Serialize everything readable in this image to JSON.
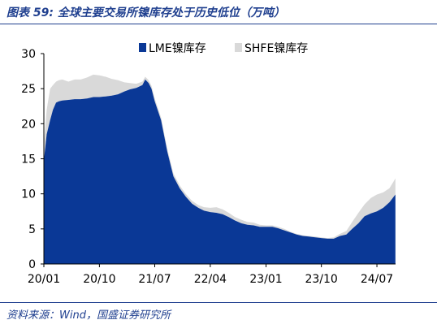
{
  "header": {
    "title": "图表 59:  全球主要交易所镍库存处于历史低位（万吨）"
  },
  "footer": {
    "source": "资料来源：Wind，国盛证券研究所"
  },
  "colors": {
    "lme": "#0a3896",
    "shfe": "#d9d9d9",
    "accent": "#1f3f8f"
  },
  "chart_data": {
    "type": "area",
    "stacked": true,
    "title": "",
    "xlabel": "",
    "ylabel": "",
    "ylim": [
      0,
      30
    ],
    "yticks": [
      0,
      5,
      10,
      15,
      20,
      25,
      30
    ],
    "xlim": [
      "2020-01",
      "2024-10"
    ],
    "xticks": [
      "20/01",
      "20/10",
      "21/07",
      "22/04",
      "23/01",
      "23/10",
      "24/07"
    ],
    "grid": false,
    "legend": {
      "position": "top-center",
      "entries": [
        "LME镍库存",
        "SHFE镍库存"
      ]
    },
    "x": [
      "2020-01-02",
      "2020-01-15",
      "2020-02-01",
      "2020-02-15",
      "2020-03-01",
      "2020-03-15",
      "2020-04-01",
      "2020-05-01",
      "2020-06-01",
      "2020-07-01",
      "2020-08-01",
      "2020-09-01",
      "2020-10-01",
      "2020-11-01",
      "2020-12-01",
      "2021-01-01",
      "2021-02-01",
      "2021-03-01",
      "2021-04-01",
      "2021-05-01",
      "2021-05-15",
      "2021-06-01",
      "2021-06-15",
      "2021-07-01",
      "2021-08-01",
      "2021-09-01",
      "2021-10-01",
      "2021-11-01",
      "2021-12-01",
      "2022-01-01",
      "2022-02-01",
      "2022-03-01",
      "2022-04-01",
      "2022-05-01",
      "2022-06-01",
      "2022-07-01",
      "2022-08-01",
      "2022-09-01",
      "2022-10-01",
      "2022-11-01",
      "2022-12-01",
      "2023-01-01",
      "2023-02-01",
      "2023-03-01",
      "2023-04-01",
      "2023-05-01",
      "2023-06-01",
      "2023-07-01",
      "2023-08-01",
      "2023-09-01",
      "2023-10-01",
      "2023-11-01",
      "2023-12-01",
      "2024-01-01",
      "2024-02-01",
      "2024-03-01",
      "2024-04-01",
      "2024-05-01",
      "2024-06-01",
      "2024-07-01",
      "2024-08-01",
      "2024-09-01",
      "2024-09-30"
    ],
    "series": [
      {
        "name": "LME镍库存",
        "values": [
          15.0,
          18.5,
          20.5,
          22.0,
          23.0,
          23.2,
          23.3,
          23.4,
          23.5,
          23.5,
          23.6,
          23.8,
          23.8,
          23.9,
          24.0,
          24.2,
          24.6,
          24.9,
          25.1,
          25.5,
          26.3,
          25.8,
          25.0,
          23.2,
          20.5,
          16.0,
          12.5,
          10.8,
          9.6,
          8.6,
          8.0,
          7.6,
          7.4,
          7.3,
          7.1,
          6.7,
          6.2,
          5.8,
          5.6,
          5.5,
          5.3,
          5.3,
          5.3,
          5.1,
          4.8,
          4.5,
          4.2,
          4.0,
          3.9,
          3.8,
          3.7,
          3.6,
          3.6,
          4.0,
          4.2,
          5.0,
          5.8,
          6.8,
          7.2,
          7.5,
          8.0,
          8.8,
          9.9
        ]
      },
      {
        "name": "SHFE镍库存",
        "values": [
          2.5,
          3.5,
          4.5,
          3.5,
          3.0,
          3.0,
          3.0,
          2.6,
          2.8,
          2.8,
          3.0,
          3.2,
          3.1,
          2.8,
          2.4,
          2.0,
          1.3,
          0.9,
          0.6,
          0.5,
          0.4,
          0.4,
          0.4,
          0.4,
          0.4,
          0.4,
          0.4,
          0.4,
          0.4,
          0.4,
          0.4,
          0.5,
          0.6,
          0.8,
          0.7,
          0.6,
          0.5,
          0.5,
          0.4,
          0.4,
          0.3,
          0.2,
          0.2,
          0.2,
          0.2,
          0.1,
          0.1,
          0.1,
          0.1,
          0.1,
          0.1,
          0.1,
          0.2,
          0.3,
          0.5,
          1.0,
          1.5,
          1.7,
          2.2,
          2.4,
          2.2,
          2.0,
          2.3
        ]
      }
    ]
  }
}
